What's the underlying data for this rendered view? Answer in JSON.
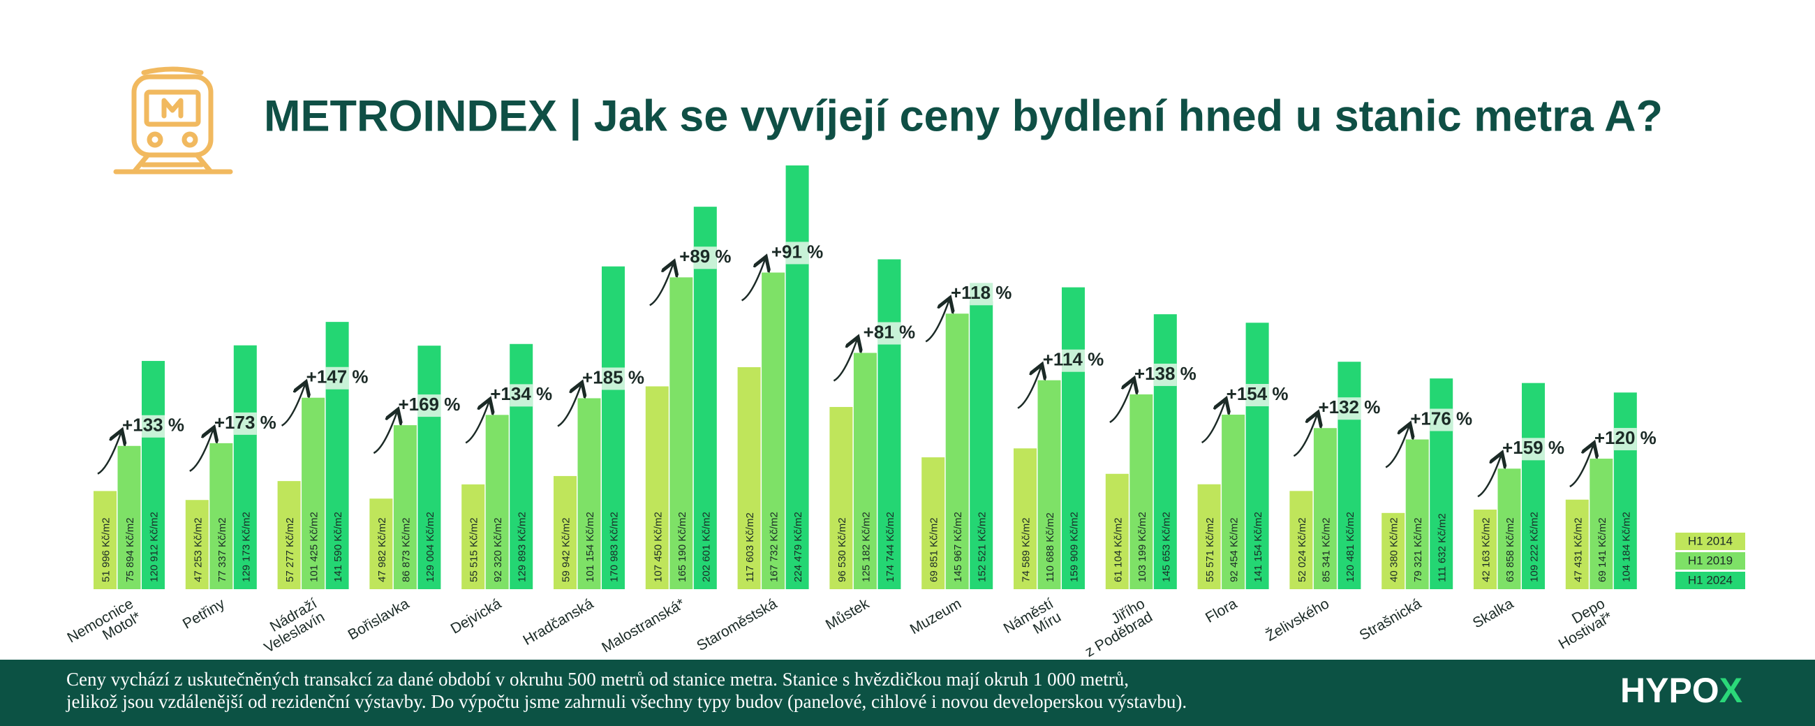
{
  "chart_data": {
    "type": "bar",
    "title": "METROINDEX | Jak se vyvíjejí ceny bydlení hned u stanic metra A?",
    "categories": [
      "Nemocnice\nMotol*",
      "Petřiny",
      "Nádraží\nVeleslavín",
      "Bořislavka",
      "Dejvická",
      "Hradčanská",
      "Malostranská*",
      "Staroměstská",
      "Můstek",
      "Muzeum",
      "Náměstí\nMíru",
      "Jiřího\nz Poděbrad",
      "Flora",
      "Želivského",
      "Strašnická",
      "Skalka",
      "Depo\nHostivař*"
    ],
    "series": [
      {
        "name": "H1 2014",
        "color": "#bfe55b",
        "values": [
          51996,
          47253,
          57277,
          47982,
          55515,
          59942,
          107450,
          117603,
          96530,
          69851,
          74589,
          61104,
          55571,
          52024,
          40380,
          42163,
          47431
        ],
        "value_labels": [
          "51 996 Kč/m2",
          "47 253 Kč/m2",
          "57 277 Kč/m2",
          "47 982 Kč/m2",
          "55 515 Kč/m2",
          "59 942 Kč/m2",
          "107 450 Kč/m2",
          "117 603 Kč/m2",
          "96 530 Kč/m2",
          "69 851 Kč/m2",
          "74 589 Kč/m2",
          "61 104 Kč/m2",
          "55 571 Kč/m2",
          "52 024 Kč/m2",
          "40 380 Kč/m2",
          "42 163 Kč/m2",
          "47 431 Kč/m2"
        ]
      },
      {
        "name": "H1 2019",
        "color": "#7ee167",
        "values": [
          75894,
          77337,
          101425,
          86873,
          92320,
          101154,
          165190,
          167732,
          125182,
          145967,
          110688,
          103199,
          92454,
          85341,
          79321,
          63858,
          69141
        ],
        "value_labels": [
          "75 894 Kč/m2",
          "77 337 Kč/m2",
          "101 425 Kč/m2",
          "86 873 Kč/m2",
          "92 320 Kč/m2",
          "101 154 Kč/m2",
          "165 190 Kč/m2",
          "167 732 Kč/m2",
          "125 182 Kč/m2",
          "145 967 Kč/m2",
          "110 688 Kč/m2",
          "103 199 Kč/m2",
          "92 454 Kč/m2",
          "85 341 Kč/m2",
          "79 321 Kč/m2",
          "63 858 Kč/m2",
          "69 141 Kč/m2"
        ]
      },
      {
        "name": "H1 2024",
        "color": "#24d673",
        "values": [
          120912,
          129173,
          141590,
          129004,
          129893,
          170983,
          202601,
          224479,
          174744,
          152521,
          159909,
          145653,
          141154,
          120481,
          111632,
          109222,
          104184
        ],
        "value_labels": [
          "120 912 Kč/m2",
          "129 173 Kč/m2",
          "141 590 Kč/m2",
          "129 004 Kč/m2",
          "129 893 Kč/m2",
          "170 983 Kč/m2",
          "202 601 Kč/m2",
          "224 479 Kč/m2",
          "174 744 Kč/m2",
          "152 521 Kč/m2",
          "159 909 Kč/m2",
          "145 653 Kč/m2",
          "141 154 Kč/m2",
          "120 481 Kč/m2",
          "111 632 Kč/m2",
          "109 222 Kč/m2",
          "104 184 Kč/m2"
        ]
      }
    ],
    "growth_labels": [
      "+133 %",
      "+173 %",
      "+147 %",
      "+169 %",
      "+134 %",
      "+185 %",
      "+89 %",
      "+91 %",
      "+81 %",
      "+118 %",
      "+114 %",
      "+138 %",
      "+154 %",
      "+132 %",
      "+176 %",
      "+159 %",
      "+120 %"
    ]
  },
  "footer": {
    "lines": [
      "Ceny vychází z uskutečněných transakcí za dané období v okruhu 500 metrů od stanice metra. Stanice s hvězdičkou mají okruh 1 000 metrů,",
      "jelikož jsou vzdálenější od rezidenční výstavby. Do výpočtu jsme zahrnuli všechny typy budov (panelové, cihlové i novou developerskou výstavbu)."
    ],
    "brand_main": "HYPO",
    "brand_accent": "X"
  }
}
